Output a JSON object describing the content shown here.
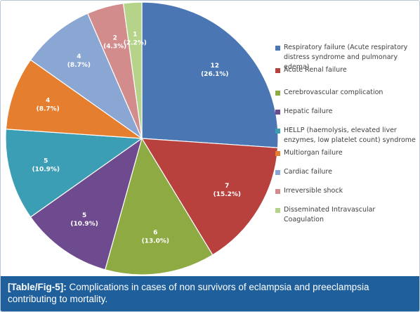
{
  "chart_data": {
    "type": "pie",
    "title": "",
    "legend_position": "right",
    "slices": [
      {
        "label": "Respiratory  failure (Acute respiratory distress syndrome and pulmonary edema)",
        "value": 12,
        "value_text": "12",
        "percent_text": "(26.1%)",
        "color": "#4a77b4"
      },
      {
        "label": "Acute Renal failure",
        "value": 7,
        "value_text": "7",
        "percent_text": "(15.2%)",
        "color": "#b8403d"
      },
      {
        "label": "Cerebrovascular complication",
        "value": 6,
        "value_text": "6",
        "percent_text": "(13.0%)",
        "color": "#8eaa43"
      },
      {
        "label": "Hepatic failure",
        "value": 5,
        "value_text": "5",
        "percent_text": "(10.9%)",
        "color": "#6d4b8e"
      },
      {
        "label": "HELLP (haemolysis, elevated liver enzymes, low platelet count) syndrome",
        "value": 5,
        "value_text": "5",
        "percent_text": "(10.9%)",
        "color": "#3c9eb4"
      },
      {
        "label": "Multiorgan failure",
        "value": 4,
        "value_text": "4",
        "percent_text": "(8.7%)",
        "color": "#e57f2f"
      },
      {
        "label": "Cardiac failure",
        "value": 4,
        "value_text": "4",
        "percent_text": "(8.7%)",
        "color": "#8aa6d3"
      },
      {
        "label": "Irreversible shock",
        "value": 2,
        "value_text": "2",
        "percent_text": "(4.3%)",
        "color": "#d38c8c"
      },
      {
        "label": "Disseminated Intravascular Coagulation",
        "value": 1,
        "value_text": "1",
        "percent_text": "(2.2%)",
        "color": "#b6d38a"
      }
    ]
  },
  "caption": {
    "reference": "[Table/Fig-5]:",
    "text": "  Complications in cases of non survivors of eclampsia and preeclampsia contributing to mortality."
  }
}
